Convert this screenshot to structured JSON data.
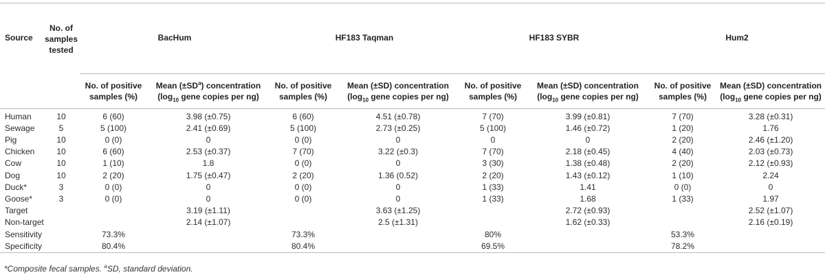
{
  "header": {
    "source": "Source",
    "tested": "No. of samples tested",
    "groups": [
      "BacHum",
      "HF183 Taqman",
      "HF183 SYBR",
      "Hum2"
    ],
    "pos_label": "No. of positive samples (%)",
    "mean_line1_first": "Mean (±SD",
    "mean_line1_sup": "a",
    "mean_line1_after": ") concentration",
    "mean_line1": "Mean (±SD) concentration",
    "mean_line2_pre": "(log",
    "mean_line2_sub": "10",
    "mean_line2_post": " gene copies per ng)"
  },
  "rows": [
    {
      "source": "Human",
      "n": "10",
      "c": [
        "6 (60)",
        "3.98 (±0.75)",
        "6 (60)",
        "4.51 (±0.78)",
        "7 (70)",
        "3.99 (±0.81)",
        "7 (70)",
        "3.28 (±0.31)"
      ]
    },
    {
      "source": "Sewage",
      "n": "5",
      "c": [
        "5 (100)",
        "2.41 (±0.69)",
        "5 (100)",
        "2.73 (±0.25)",
        "5 (100)",
        "1.46 (±0.72)",
        "1 (20)",
        "1.76"
      ]
    },
    {
      "source": "Pig",
      "n": "10",
      "c": [
        "0 (0)",
        "0",
        "0 (0)",
        "0",
        "0",
        "0",
        "2 (20)",
        "2.46 (±1.20)"
      ]
    },
    {
      "source": "Chicken",
      "n": "10",
      "c": [
        "6 (60)",
        "2.53 (±0.37)",
        "7 (70)",
        "3.22 (±0.3)",
        "7 (70)",
        "2.18 (±0.45)",
        "4 (40)",
        "2.03 (±0.73)"
      ]
    },
    {
      "source": "Cow",
      "n": "10",
      "c": [
        "1 (10)",
        "1.8",
        "0 (0)",
        "0",
        "3 (30)",
        "1.38 (±0.48)",
        "2 (20)",
        "2.12 (±0.93)"
      ]
    },
    {
      "source": "Dog",
      "n": "10",
      "c": [
        "2 (20)",
        "1.75 (±0.47)",
        "2 (20)",
        "1.36 (0.52)",
        "2 (20)",
        "1.43 (±0.12)",
        "1 (10)",
        "2.24"
      ]
    },
    {
      "source": "Duck*",
      "n": "3",
      "c": [
        "0 (0)",
        "0",
        "0 (0)",
        "0",
        "1 (33)",
        "1.41",
        "0 (0)",
        "0"
      ]
    },
    {
      "source": "Goose*",
      "n": "3",
      "c": [
        "0 (0)",
        "0",
        "0 (0)",
        "0",
        "1 (33)",
        "1.68",
        "1 (33)",
        "1.97"
      ]
    },
    {
      "source": "Target",
      "n": "",
      "c": [
        "",
        "3.19 (±1.11)",
        "",
        "3.63 (±1.25)",
        "",
        "2.72 (±0.93)",
        "",
        "2.52 (±1.07)"
      ]
    },
    {
      "source": "Non-target",
      "n": "",
      "c": [
        "",
        "2.14 (±1.07)",
        "",
        "2.5 (±1.31)",
        "",
        "1.62 (±0.33)",
        "",
        "2.16 (±0.19)"
      ]
    },
    {
      "source": "Sensitivity",
      "n": "",
      "c": [
        "73.3%",
        "",
        "73.3%",
        "",
        "80%",
        "",
        "53.3%",
        ""
      ]
    },
    {
      "source": "Specificity",
      "n": "",
      "c": [
        "80.4%",
        "",
        "80.4%",
        "",
        "69.5%",
        "",
        "78.2%",
        ""
      ]
    }
  ],
  "footnote": {
    "part1": "*Composite fecal samples. ",
    "sup": "a",
    "part2": "SD, standard deviation."
  }
}
